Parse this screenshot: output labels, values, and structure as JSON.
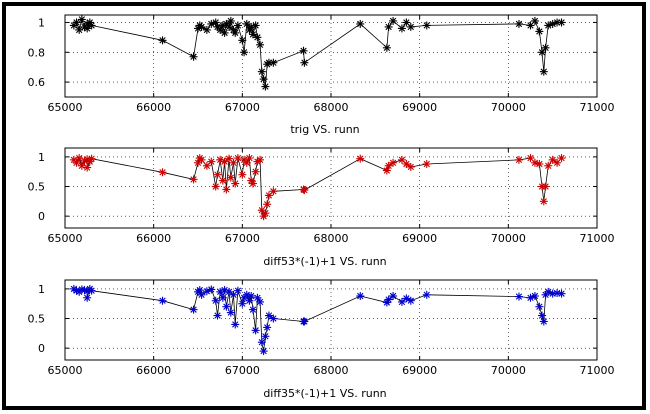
{
  "chart_data": [
    {
      "type": "scatter",
      "title": "trig VS. runn",
      "xlim": [
        65000,
        71000
      ],
      "ylim": [
        0.5,
        1.05
      ],
      "xticks": [
        65000,
        66000,
        67000,
        68000,
        69000,
        70000,
        71000
      ],
      "yticks": [
        0.6,
        0.8,
        1
      ],
      "ytick_labels": [
        "0.6",
        "0.8",
        "1"
      ],
      "grid": true,
      "color": "#000000",
      "series": [
        {
          "x": [
            65100,
            65130,
            65160,
            65190,
            65220,
            65250,
            65280,
            65300,
            65250,
            66100,
            66450,
            66500,
            66520,
            66540,
            66600,
            66650,
            66700,
            66720,
            66750,
            66780,
            66800,
            66820,
            66850,
            66870,
            66900,
            66920,
            66950,
            67000,
            67020,
            67050,
            67080,
            67100,
            67120,
            67150,
            67170,
            67200,
            67220,
            67240,
            67260,
            67280,
            67300,
            67350,
            67700,
            67690,
            68330,
            68630,
            68650,
            68700,
            68800,
            68850,
            68900,
            69080,
            70120,
            70250,
            70300,
            70350,
            70380,
            70400,
            70420,
            70450,
            70500,
            70550,
            70600
          ],
          "y": [
            0.98,
            1.0,
            0.95,
            1.02,
            0.97,
            0.99,
            1.0,
            0.98,
            0.96,
            0.88,
            0.77,
            0.96,
            0.98,
            0.97,
            0.95,
            0.99,
            1.0,
            0.97,
            0.95,
            0.98,
            0.93,
            0.99,
            0.97,
            1.01,
            0.95,
            0.93,
            0.98,
            0.88,
            0.8,
            0.99,
            0.95,
            0.97,
            0.92,
            0.98,
            0.9,
            0.85,
            0.67,
            0.62,
            0.57,
            0.72,
            0.73,
            0.73,
            0.73,
            0.81,
            0.99,
            0.83,
            0.97,
            1.01,
            0.96,
            1.0,
            0.97,
            0.98,
            0.99,
            0.98,
            1.01,
            0.94,
            0.8,
            0.67,
            0.83,
            0.98,
            0.99,
            1.0,
            1.0
          ]
        }
      ]
    },
    {
      "type": "scatter",
      "title": "diff53*(-1)+1 VS. runn",
      "xlim": [
        65000,
        71000
      ],
      "ylim": [
        -0.2,
        1.15
      ],
      "xticks": [
        65000,
        66000,
        67000,
        68000,
        69000,
        70000,
        71000
      ],
      "yticks": [
        0,
        0.5,
        1
      ],
      "ytick_labels": [
        "0",
        "0.5",
        "1"
      ],
      "grid": true,
      "color": "#cc0000",
      "series": [
        {
          "x": [
            65100,
            65130,
            65160,
            65190,
            65220,
            65250,
            65280,
            65300,
            65250,
            66100,
            66450,
            66500,
            66520,
            66540,
            66600,
            66650,
            66700,
            66720,
            66750,
            66780,
            66800,
            66820,
            66850,
            66870,
            66900,
            66920,
            66950,
            67000,
            67020,
            67050,
            67080,
            67100,
            67120,
            67150,
            67170,
            67200,
            67220,
            67240,
            67260,
            67280,
            67300,
            67350,
            67690,
            67700,
            68330,
            68630,
            68650,
            68700,
            68800,
            68850,
            68900,
            69080,
            70120,
            70250,
            70300,
            70350,
            70380,
            70400,
            70420,
            70450,
            70500,
            70550,
            70600
          ],
          "y": [
            0.95,
            0.9,
            0.98,
            0.85,
            0.93,
            0.96,
            0.92,
            0.97,
            0.82,
            0.74,
            0.62,
            0.9,
            0.98,
            0.95,
            0.85,
            0.92,
            0.5,
            0.7,
            0.95,
            0.6,
            0.92,
            0.45,
            0.97,
            0.65,
            0.9,
            0.55,
            0.98,
            0.7,
            0.95,
            0.9,
            0.98,
            0.6,
            0.55,
            0.75,
            0.92,
            0.95,
            0.1,
            0.0,
            0.05,
            0.2,
            0.35,
            0.42,
            0.45,
            0.44,
            0.97,
            0.77,
            0.85,
            0.9,
            0.95,
            0.88,
            0.83,
            0.88,
            0.95,
            0.98,
            0.9,
            0.88,
            0.5,
            0.25,
            0.5,
            0.85,
            0.95,
            0.9,
            0.98
          ]
        }
      ]
    },
    {
      "type": "scatter",
      "title": "diff35*(-1)+1 VS. runn",
      "xlim": [
        65000,
        71000
      ],
      "ylim": [
        -0.2,
        1.15
      ],
      "xticks": [
        65000,
        66000,
        67000,
        68000,
        69000,
        70000,
        71000
      ],
      "yticks": [
        0,
        0.5,
        1
      ],
      "ytick_labels": [
        "0",
        "0.5",
        "1"
      ],
      "grid": true,
      "color": "#0000cc",
      "series": [
        {
          "x": [
            65100,
            65130,
            65160,
            65190,
            65220,
            65250,
            65280,
            65300,
            65250,
            66100,
            66450,
            66500,
            66520,
            66540,
            66600,
            66650,
            66700,
            66720,
            66750,
            66780,
            66800,
            66820,
            66850,
            66870,
            66900,
            66920,
            66950,
            67000,
            67020,
            67050,
            67080,
            67100,
            67120,
            67150,
            67170,
            67200,
            67220,
            67240,
            67260,
            67280,
            67300,
            67350,
            67690,
            67700,
            68330,
            68630,
            68650,
            68700,
            68800,
            68850,
            68900,
            69080,
            70120,
            70250,
            70300,
            70350,
            70380,
            70400,
            70420,
            70450,
            70500,
            70550,
            70600
          ],
          "y": [
            1.0,
            0.97,
            0.95,
            0.99,
            0.98,
            0.96,
            1.0,
            0.97,
            0.85,
            0.8,
            0.65,
            0.95,
            0.98,
            0.9,
            0.96,
            0.99,
            0.8,
            0.55,
            0.95,
            0.85,
            0.98,
            0.7,
            0.95,
            0.6,
            0.9,
            0.4,
            0.97,
            0.75,
            0.85,
            0.9,
            0.8,
            0.88,
            0.65,
            0.3,
            0.85,
            0.78,
            0.1,
            -0.05,
            0.2,
            0.35,
            0.55,
            0.5,
            0.45,
            0.45,
            0.88,
            0.77,
            0.82,
            0.88,
            0.78,
            0.84,
            0.8,
            0.9,
            0.87,
            0.85,
            0.88,
            0.7,
            0.55,
            0.45,
            0.9,
            0.95,
            0.92,
            0.93,
            0.92
          ]
        }
      ]
    }
  ]
}
